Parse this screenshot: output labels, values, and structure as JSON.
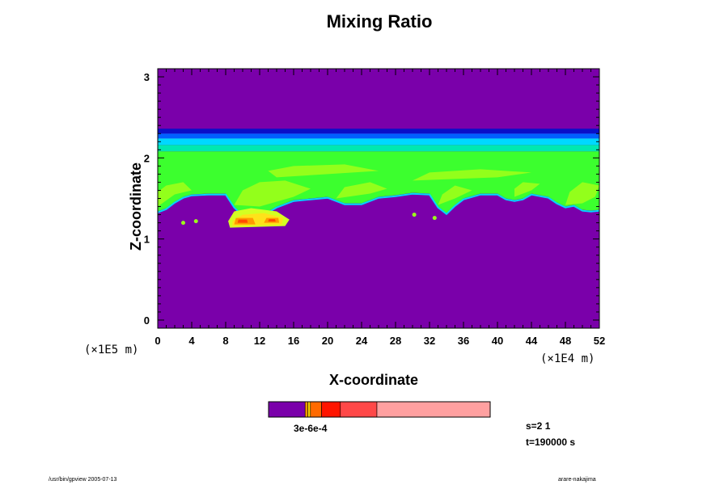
{
  "chart_data": {
    "type": "heatmap",
    "title": "Mixing Ratio",
    "xlabel": "X-coordinate",
    "ylabel": "Z-coordinate",
    "x_ticks": [
      "0",
      "4",
      "8",
      "12",
      "16",
      "20",
      "24",
      "28",
      "32",
      "36",
      "40",
      "44",
      "48",
      "52"
    ],
    "y_ticks": [
      "0",
      "1",
      "2",
      "3"
    ],
    "x_unit": "(×1E4 m)",
    "z_unit": "(×1E5 m)",
    "xlim": [
      0,
      52
    ],
    "ylim": [
      -0.1,
      3.1
    ],
    "colorbar_label": "3e-6e-4",
    "colorbar_colors": [
      "#7a00aa",
      "#ff9900",
      "#ffd000",
      "#ff6a00",
      "#ff1500",
      "#ff4848",
      "#ffa0a0"
    ],
    "colors": {
      "background": "#7a00aa",
      "dark_blue": "#0a10c8",
      "blue": "#0060ff",
      "cyan": "#00d8ff",
      "teal": "#00e8b0",
      "green": "#3cff2e",
      "lime": "#9cff1a",
      "yellow_green": "#d4ff22",
      "yellow": "#ffe21a",
      "orange": "#ff9a00",
      "red": "#ff4b00"
    },
    "step_label": "s=2 1",
    "time_label": "t=190000 s"
  },
  "footer": {
    "left": "/usr/bin/gpview 2005-07-13",
    "right": "arare-nakajima"
  }
}
